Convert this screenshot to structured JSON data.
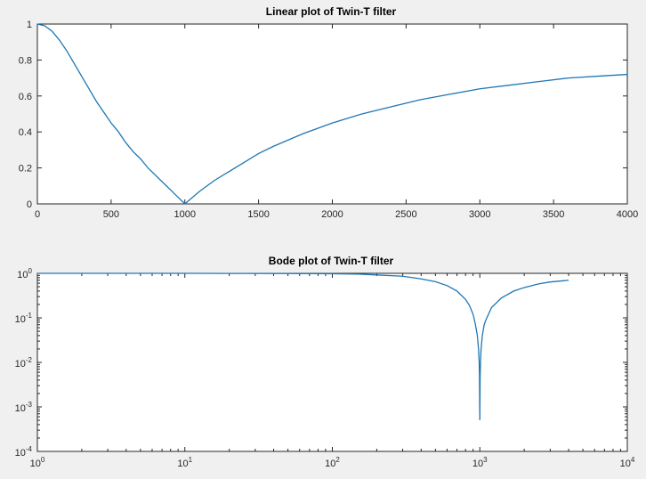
{
  "chart_data": [
    {
      "type": "line",
      "title": "Linear plot of Twin-T filter",
      "xlabel": "",
      "ylabel": "",
      "xlim": [
        0,
        4000
      ],
      "ylim": [
        0,
        1
      ],
      "x_ticks": [
        0,
        500,
        1000,
        1500,
        2000,
        2500,
        3000,
        3500,
        4000
      ],
      "x_tick_labels": [
        "0",
        "500",
        "1000",
        "1500",
        "2000",
        "2500",
        "3000",
        "3500",
        "4000"
      ],
      "y_ticks": [
        0,
        0.2,
        0.4,
        0.6,
        0.8,
        1
      ],
      "y_tick_labels": [
        "0",
        "0.2",
        "0.4",
        "0.6",
        "0.8",
        "1"
      ],
      "grid": false,
      "series": [
        {
          "color": "#1f77b4",
          "x": [
            0,
            50,
            100,
            150,
            200,
            250,
            300,
            350,
            400,
            450,
            500,
            550,
            600,
            650,
            700,
            750,
            800,
            850,
            900,
            950,
            1000,
            1100,
            1200,
            1300,
            1400,
            1500,
            1600,
            1800,
            2000,
            2200,
            2400,
            2600,
            2800,
            3000,
            3200,
            3400,
            3600,
            3800,
            4000
          ],
          "y": [
            1.0,
            0.99,
            0.96,
            0.91,
            0.85,
            0.78,
            0.71,
            0.64,
            0.57,
            0.51,
            0.45,
            0.4,
            0.34,
            0.29,
            0.25,
            0.2,
            0.16,
            0.12,
            0.08,
            0.04,
            0.0,
            0.07,
            0.13,
            0.18,
            0.23,
            0.28,
            0.32,
            0.39,
            0.45,
            0.5,
            0.54,
            0.58,
            0.61,
            0.64,
            0.66,
            0.68,
            0.7,
            0.71,
            0.72
          ]
        }
      ]
    },
    {
      "type": "line",
      "title": "Bode plot of Twin-T filter",
      "xlabel": "",
      "ylabel": "",
      "x_scale": "log",
      "y_scale": "log",
      "xlim": [
        1,
        10000
      ],
      "ylim": [
        0.0001,
        1
      ],
      "x_ticks": [
        1,
        10,
        100,
        1000,
        10000
      ],
      "x_tick_labels": [
        {
          "base": "10",
          "exp": "0"
        },
        {
          "base": "10",
          "exp": "1"
        },
        {
          "base": "10",
          "exp": "2"
        },
        {
          "base": "10",
          "exp": "3"
        },
        {
          "base": "10",
          "exp": "4"
        }
      ],
      "y_ticks": [
        0.0001,
        0.001,
        0.01,
        0.1,
        1
      ],
      "y_tick_labels": [
        {
          "base": "10",
          "exp": "-4"
        },
        {
          "base": "10",
          "exp": "-3"
        },
        {
          "base": "10",
          "exp": "-2"
        },
        {
          "base": "10",
          "exp": "-1"
        },
        {
          "base": "10",
          "exp": "0"
        }
      ],
      "grid": false,
      "series": [
        {
          "color": "#1f77b4",
          "x": [
            1,
            10,
            50,
            100,
            150,
            200,
            300,
            400,
            500,
            600,
            700,
            800,
            850,
            900,
            930,
            960,
            980,
            990,
            995,
            1000,
            1005,
            1010,
            1020,
            1040,
            1070,
            1100,
            1200,
            1400,
            1700,
            2000,
            2500,
            3000,
            3500,
            4000
          ],
          "y": [
            1.0,
            1.0,
            0.99,
            0.98,
            0.96,
            0.92,
            0.86,
            0.75,
            0.65,
            0.53,
            0.4,
            0.26,
            0.19,
            0.12,
            0.075,
            0.042,
            0.02,
            0.01,
            0.005,
            0.0005,
            0.005,
            0.01,
            0.02,
            0.04,
            0.07,
            0.09,
            0.17,
            0.28,
            0.4,
            0.48,
            0.58,
            0.64,
            0.67,
            0.7
          ]
        }
      ]
    }
  ]
}
